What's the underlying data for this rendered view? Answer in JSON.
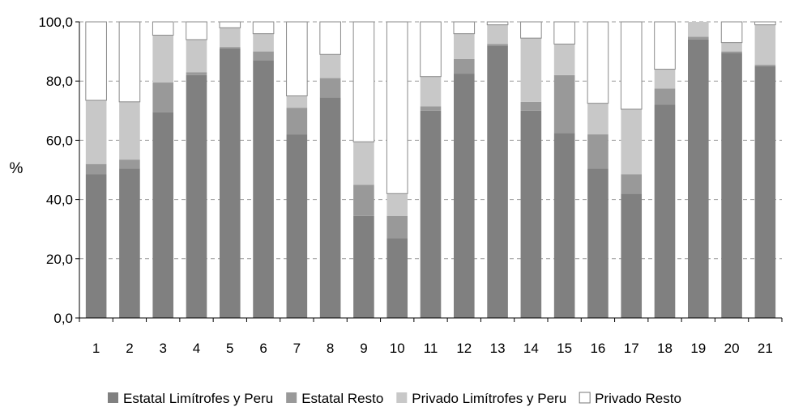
{
  "chart_data": {
    "type": "bar",
    "stacked": true,
    "percent_stacked": true,
    "ylabel": "%",
    "xlabel": "",
    "title": "",
    "ylim": [
      0,
      100
    ],
    "yticks": [
      0,
      20,
      40,
      60,
      80,
      100
    ],
    "ytick_labels": [
      "0,0",
      "20,0",
      "40,0",
      "60,0",
      "80,0",
      "100,0"
    ],
    "grid": "horizontal dashed",
    "legend_position": "bottom",
    "categories": [
      "1",
      "2",
      "3",
      "4",
      "5",
      "6",
      "7",
      "8",
      "9",
      "10",
      "11",
      "12",
      "13",
      "14",
      "15",
      "16",
      "17",
      "18",
      "19",
      "20",
      "21"
    ],
    "series": [
      {
        "name": "Estatal Limítrofes y Peru",
        "color": "#808080",
        "values": [
          48.5,
          50.5,
          69.5,
          82.0,
          91.0,
          87.0,
          62.0,
          74.5,
          34.5,
          27.0,
          70.0,
          82.5,
          92.0,
          70.0,
          62.5,
          50.5,
          42.0,
          72.0,
          94.0,
          89.5,
          85.0
        ]
      },
      {
        "name": "Estatal Resto",
        "color": "#999999",
        "values": [
          3.5,
          3.0,
          10.0,
          1.0,
          0.5,
          3.0,
          9.0,
          6.5,
          10.5,
          7.5,
          1.5,
          5.0,
          0.5,
          3.0,
          19.5,
          11.5,
          6.5,
          5.5,
          1.0,
          0.5,
          0.5
        ]
      },
      {
        "name": "Privado Limítrofes y Peru",
        "color": "#c8c8c8",
        "values": [
          21.5,
          19.5,
          16.0,
          11.0,
          6.5,
          6.0,
          4.0,
          8.0,
          14.5,
          7.5,
          10.0,
          8.5,
          6.5,
          21.5,
          10.5,
          10.5,
          22.0,
          6.5,
          5.0,
          3.0,
          13.5
        ]
      },
      {
        "name": "Privado Resto",
        "color": "#ffffff",
        "values": [
          26.5,
          27.0,
          4.5,
          6.0,
          2.0,
          4.0,
          25.0,
          11.0,
          40.5,
          58.0,
          18.5,
          4.0,
          1.0,
          5.5,
          7.5,
          27.5,
          29.5,
          16.0,
          0.0,
          7.0,
          1.0
        ]
      }
    ]
  }
}
